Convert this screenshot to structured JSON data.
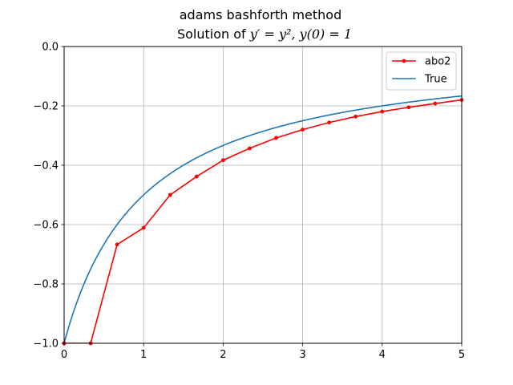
{
  "chart_data": {
    "type": "line",
    "title": "adams bashforth method",
    "subtitle": {
      "prefix": "Solution of ",
      "equation": "y′ = y², y(0) = 1"
    },
    "xlabel": "",
    "ylabel": "",
    "xlim": [
      0,
      5
    ],
    "ylim": [
      -1.0,
      0.0
    ],
    "xticks": [
      0,
      1,
      2,
      3,
      4,
      5
    ],
    "xtick_labels": [
      "0",
      "1",
      "2",
      "3",
      "4",
      "5"
    ],
    "yticks": [
      -1.0,
      -0.8,
      -0.6,
      -0.4,
      -0.2,
      0.0
    ],
    "ytick_labels": [
      "−1.0",
      "−0.8",
      "−0.6",
      "−0.4",
      "−0.2",
      "0.0"
    ],
    "grid": true,
    "legend": "top-right",
    "series": [
      {
        "name": "abo2",
        "color": "#ff0000",
        "marker": "dot",
        "x": [
          0.0,
          0.3333,
          0.6667,
          1.0,
          1.3333,
          1.6667,
          2.0,
          2.3333,
          2.6667,
          3.0,
          3.3333,
          3.6667,
          4.0,
          4.3333,
          4.6667,
          5.0
        ],
        "y": [
          -1.0,
          -1.0,
          -0.667,
          -0.611,
          -0.5,
          -0.438,
          -0.383,
          -0.343,
          -0.308,
          -0.28,
          -0.256,
          -0.236,
          -0.219,
          -0.205,
          -0.192,
          -0.18
        ]
      },
      {
        "name": "True",
        "color": "#1f77b4",
        "marker": "none",
        "function": "-1/(1+x)"
      }
    ]
  }
}
